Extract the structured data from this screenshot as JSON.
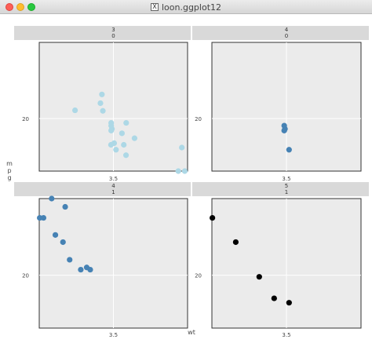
{
  "window": {
    "title": "loon.ggplot12",
    "title_icon": "x11-icon"
  },
  "colors": {
    "strip_bg": "#d9d9d9",
    "panel_bg": "#ebebeb",
    "gridline": "#ffffff",
    "series": [
      "#add8e6",
      "#4682b4",
      "#4682b4",
      "#000000"
    ]
  },
  "chart_data": {
    "type": "scatter",
    "xlabel": "wt",
    "ylabel": "m\np\ng",
    "facet_layout": "2x2",
    "shared_axes": true,
    "grid": true,
    "xlim": [
      1.5,
      5.5
    ],
    "ylim": [
      10.4,
      33.9
    ],
    "xticks": [
      3.5
    ],
    "yticks": [
      20
    ],
    "panels": [
      {
        "strip": [
          "3",
          "0"
        ],
        "color": "#add8e6",
        "points": [
          {
            "x": 2.465,
            "y": 21.5
          },
          {
            "x": 3.215,
            "y": 21.4
          },
          {
            "x": 3.44,
            "y": 18.7
          },
          {
            "x": 3.46,
            "y": 18.1
          },
          {
            "x": 3.57,
            "y": 14.3
          },
          {
            "x": 3.19,
            "y": 24.4
          },
          {
            "x": 3.15,
            "y": 22.8
          },
          {
            "x": 3.44,
            "y": 19.2
          },
          {
            "x": 3.44,
            "y": 17.8
          },
          {
            "x": 4.07,
            "y": 16.4
          },
          {
            "x": 3.73,
            "y": 17.3
          },
          {
            "x": 3.78,
            "y": 15.2
          },
          {
            "x": 5.25,
            "y": 10.4
          },
          {
            "x": 5.424,
            "y": 10.4
          },
          {
            "x": 5.345,
            "y": 14.7
          },
          {
            "x": 3.52,
            "y": 15.5
          },
          {
            "x": 3.435,
            "y": 15.2
          },
          {
            "x": 3.84,
            "y": 13.3
          },
          {
            "x": 3.845,
            "y": 19.2
          }
        ]
      },
      {
        "strip": [
          "4",
          "0"
        ],
        "color": "#4682b4",
        "points": [
          {
            "x": 3.44,
            "y": 18.7
          },
          {
            "x": 3.44,
            "y": 17.8
          },
          {
            "x": 3.46,
            "y": 18.1
          },
          {
            "x": 3.57,
            "y": 14.3
          }
        ]
      },
      {
        "strip": [
          "4",
          "1"
        ],
        "color": "#4682b4",
        "points": [
          {
            "x": 2.62,
            "y": 21.0
          },
          {
            "x": 2.875,
            "y": 21.0
          },
          {
            "x": 2.32,
            "y": 22.8
          },
          {
            "x": 2.2,
            "y": 32.4
          },
          {
            "x": 1.615,
            "y": 30.4
          },
          {
            "x": 1.835,
            "y": 33.9
          },
          {
            "x": 1.935,
            "y": 27.3
          },
          {
            "x": 2.14,
            "y": 26.0
          },
          {
            "x": 1.513,
            "y": 30.4
          },
          {
            "x": 2.78,
            "y": 21.4
          }
        ]
      },
      {
        "strip": [
          "5",
          "1"
        ],
        "color": "#000000",
        "points": [
          {
            "x": 2.14,
            "y": 26.0
          },
          {
            "x": 1.513,
            "y": 30.4
          },
          {
            "x": 3.17,
            "y": 15.8
          },
          {
            "x": 2.77,
            "y": 19.7
          },
          {
            "x": 3.57,
            "y": 15.0
          }
        ]
      }
    ]
  }
}
